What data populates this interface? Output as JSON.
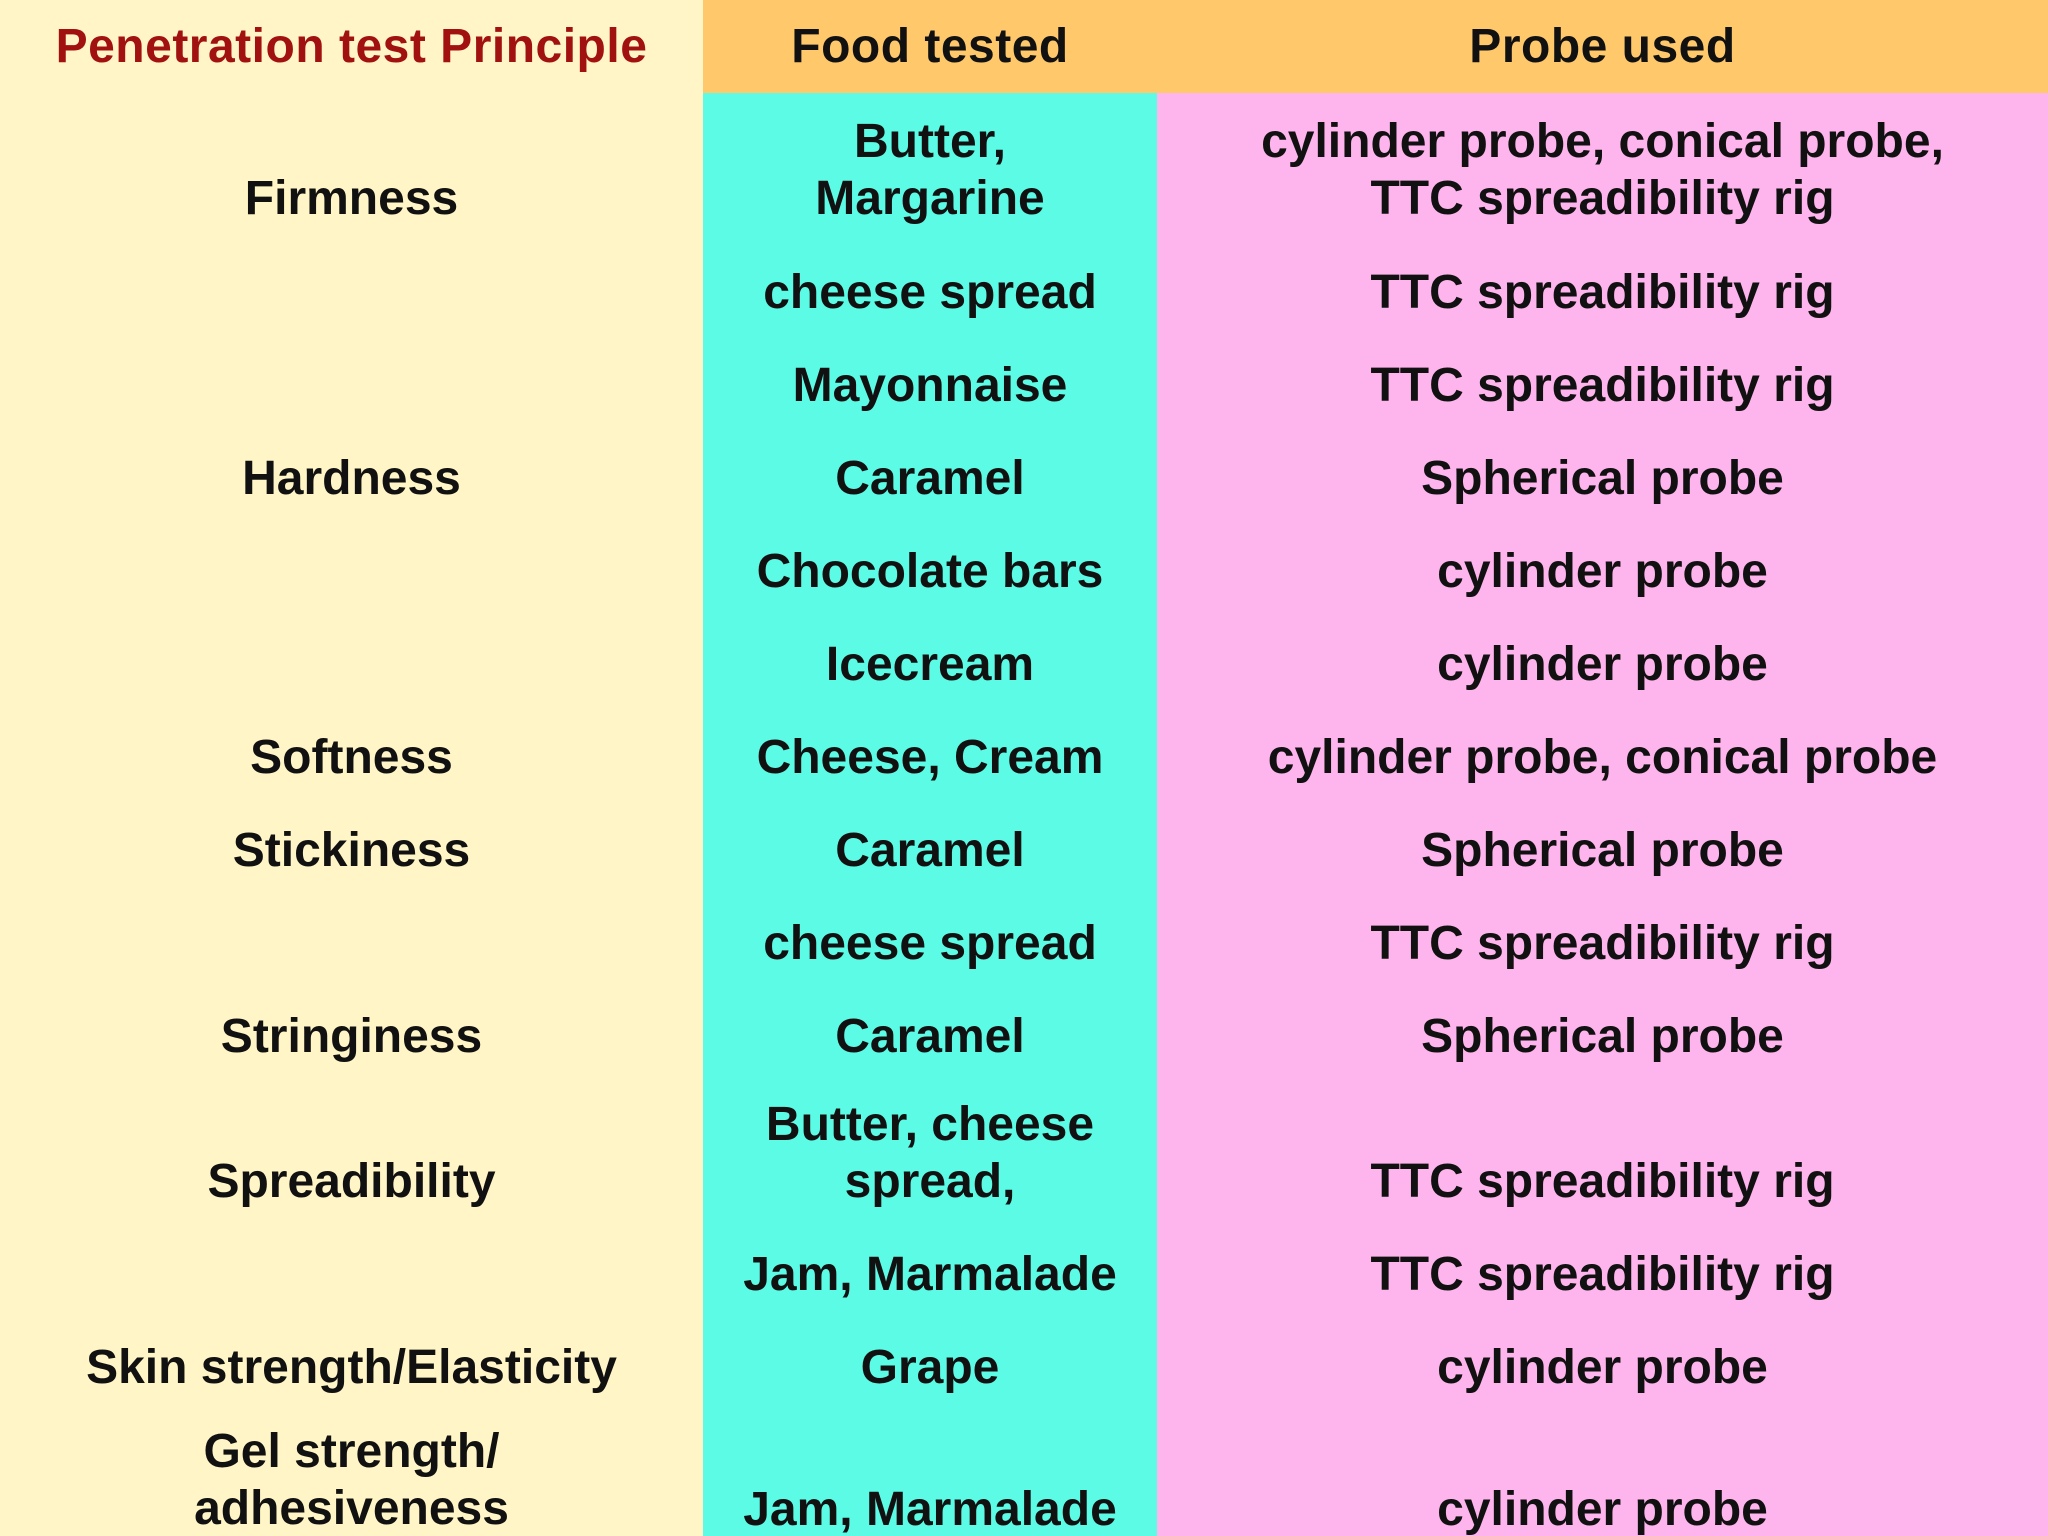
{
  "headers": {
    "principle": "Penetration test Principle",
    "food": "Food tested",
    "probe": "Probe used"
  },
  "rows": [
    {
      "principle": "Firmness",
      "food": "Butter,\nMargarine",
      "probe": "cylinder probe, conical probe,\nTTC spreadibility rig"
    },
    {
      "principle": "",
      "food": "cheese spread",
      "probe": "TTC spreadibility rig"
    },
    {
      "principle": "",
      "food": "Mayonnaise",
      "probe": "TTC spreadibility rig"
    },
    {
      "principle": "Hardness",
      "food": "Caramel",
      "probe": "Spherical probe"
    },
    {
      "principle": "",
      "food": "Chocolate bars",
      "probe": "cylinder probe"
    },
    {
      "principle": "",
      "food": "Icecream",
      "probe": "cylinder probe"
    },
    {
      "principle": "Softness",
      "food": "Cheese, Cream",
      "probe": "cylinder probe, conical probe"
    },
    {
      "principle": "Stickiness",
      "food": "Caramel",
      "probe": "Spherical probe"
    },
    {
      "principle": "",
      "food": "cheese spread",
      "probe": "TTC spreadibility rig"
    },
    {
      "principle": "Stringiness",
      "food": "Caramel",
      "probe": "Spherical probe"
    },
    {
      "principle": "Spreadibility",
      "food": "Butter, cheese\nspread,",
      "probe": "TTC spreadibility rig"
    },
    {
      "principle": "",
      "food": "Jam, Marmalade",
      "probe": "TTC spreadibility rig"
    },
    {
      "principle": "Skin strength/Elasticity",
      "food": "Grape",
      "probe": "cylinder probe"
    },
    {
      "principle": "Gel strength/\nadhesiveness",
      "food": "Jam, Marmalade",
      "probe": "cylinder probe"
    }
  ]
}
